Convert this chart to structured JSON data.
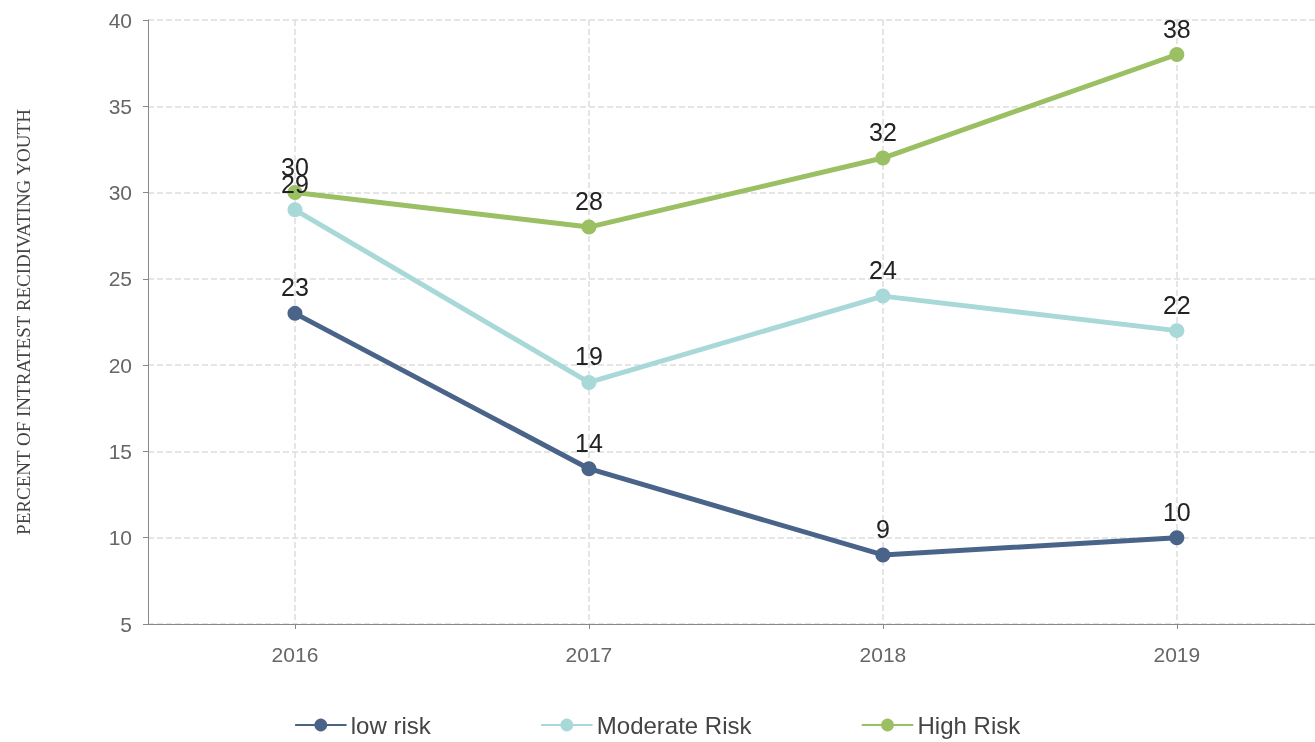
{
  "chart_data": {
    "type": "line",
    "ylabel": "PERCENT OF INTRATEST RECIDIVATING YOUTH",
    "x": [
      2016,
      2017,
      2018,
      2019
    ],
    "xlim": [
      2015.5,
      2019.47
    ],
    "xticks": [
      2016,
      2017,
      2018,
      2019
    ],
    "ylim": [
      5,
      40
    ],
    "yticks": [
      5,
      10,
      15,
      20,
      25,
      30,
      35,
      40
    ],
    "grid": true,
    "legend": "bottom",
    "data_labels": true,
    "marker": "circle",
    "line_style": "solid",
    "series": [
      {
        "name": "low risk",
        "color": "#4a6489",
        "values": [
          23,
          14,
          9,
          10
        ]
      },
      {
        "name": "Moderate Risk",
        "color": "#a8d8d8",
        "values": [
          29,
          19,
          24,
          22
        ]
      },
      {
        "name": "High Risk",
        "color": "#9bbf63",
        "values": [
          30,
          28,
          32,
          38
        ]
      }
    ]
  }
}
